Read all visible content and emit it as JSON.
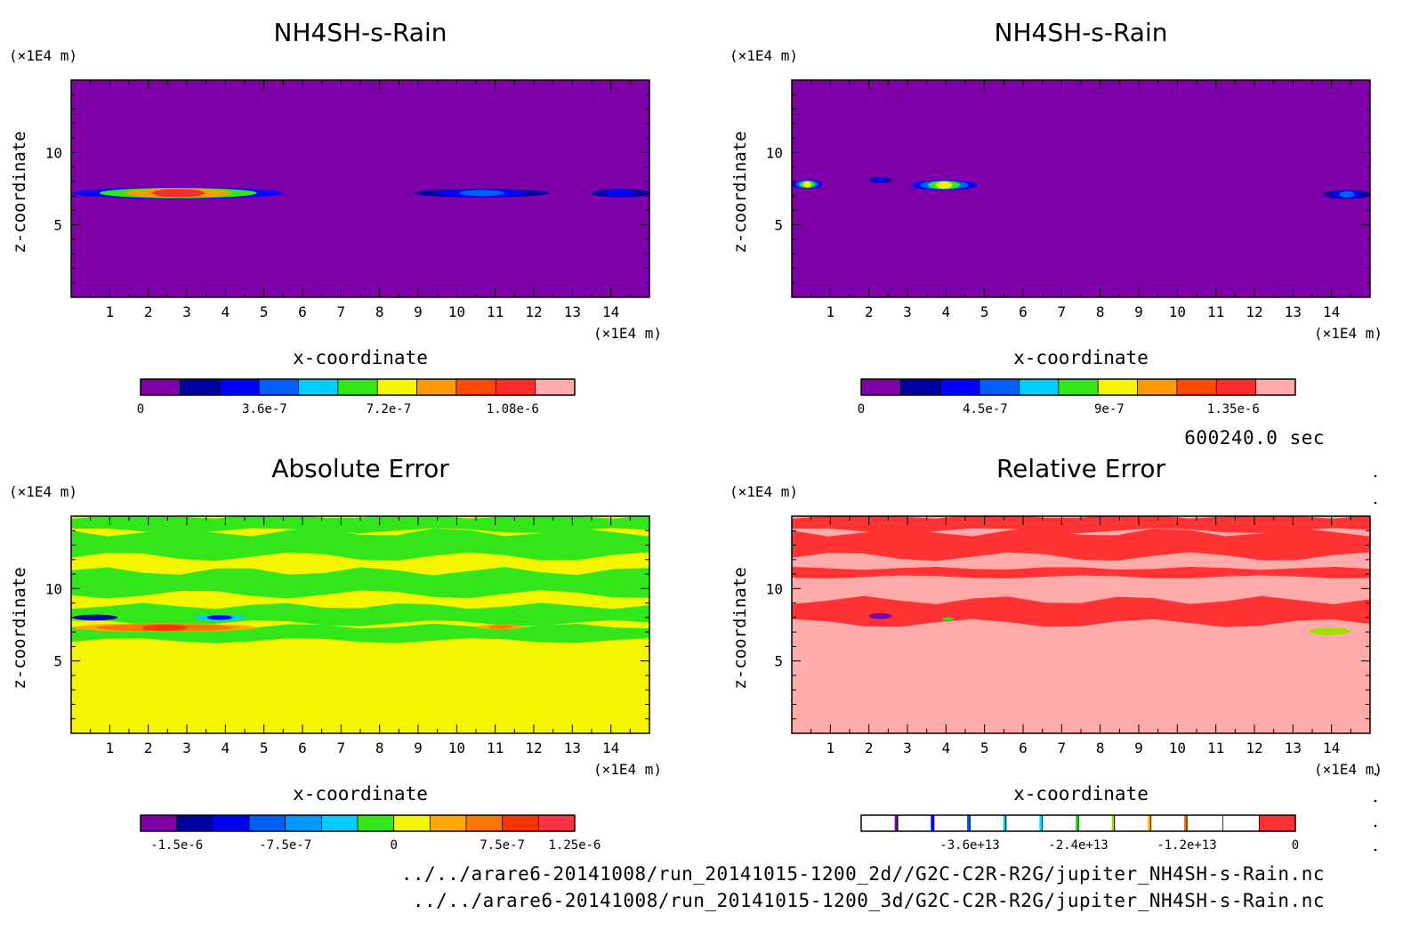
{
  "time_label": "600240.0 sec",
  "footer": {
    "path_2d": "../../arare6-20141008/run_20141015-1200_2d//G2C-C2R-R2G/jupiter_NH4SH-s-Rain.nc",
    "path_3d": "../../arare6-20141008/run_20141015-1200_3d/G2C-C2R-R2G/jupiter_NH4SH-s-Rain.nc"
  },
  "colors": {
    "levels10": [
      "#7f00a8",
      "#0000a0",
      "#0000ff",
      "#0060ff",
      "#00ccff",
      "#33e61a",
      "#f5f500",
      "#ff9900",
      "#ff4a00",
      "#ff2a2a",
      "#ffabab"
    ],
    "abs_err": [
      "#7f00a8",
      "#0000a0",
      "#0000ff",
      "#0060ff",
      "#0099ff",
      "#00ccff",
      "#33e61a",
      "#f5f500",
      "#ffaa00",
      "#ff7700",
      "#ff3300",
      "#ff3344"
    ],
    "rel_marks": [
      "#7f00a8",
      "#0000ff",
      "#0060ff",
      "#00ccff",
      "#00e5ff",
      "#33e61a",
      "#a0e000",
      "#ffaa00",
      "#ff7700"
    ],
    "rel_top": "#ff3333"
  },
  "chart_data": [
    {
      "type": "heatmap",
      "title": "NH4SH-s-Rain",
      "xlabel": "x-coordinate",
      "ylabel": "z-coordinate",
      "x_unit": "(×1E4 m)",
      "y_unit": "(×1E4 m)",
      "xlim": [
        0,
        15
      ],
      "ylim": [
        0,
        15
      ],
      "x_ticks": [
        1,
        2,
        3,
        4,
        5,
        6,
        7,
        8,
        9,
        10,
        11,
        12,
        13,
        14
      ],
      "y_ticks": [
        5,
        10
      ],
      "colorbar": {
        "min": 0,
        "max": 1.26e-06,
        "n": 11,
        "ticks": [
          "0",
          "3.6e-7",
          "7.2e-7",
          "1.08e-6"
        ],
        "tick_values": [
          0,
          3.6e-07,
          7.2e-07,
          1.08e-06
        ]
      },
      "background_level": 0,
      "features": [
        {
          "x": [
            0.05,
            5.5
          ],
          "z": [
            6.8,
            7.6
          ],
          "peak_level": 9
        },
        {
          "x": [
            8.9,
            12.4
          ],
          "z": [
            6.9,
            7.5
          ],
          "peak_level": 3
        },
        {
          "x": [
            13.5,
            15
          ],
          "z": [
            6.9,
            7.5
          ],
          "peak_level": 2
        }
      ]
    },
    {
      "type": "heatmap",
      "title": "NH4SH-s-Rain",
      "xlabel": "x-coordinate",
      "ylabel": "z-coordinate",
      "x_unit": "(×1E4 m)",
      "y_unit": "(×1E4 m)",
      "xlim": [
        0,
        15
      ],
      "ylim": [
        0,
        15
      ],
      "x_ticks": [
        1,
        2,
        3,
        4,
        5,
        6,
        7,
        8,
        9,
        10,
        11,
        12,
        13,
        14
      ],
      "y_ticks": [
        5,
        10
      ],
      "colorbar": {
        "min": 0,
        "max": 1.575e-06,
        "n": 11,
        "ticks": [
          "0",
          "4.5e-7",
          "9e-7",
          "1.35e-6"
        ],
        "tick_values": [
          0,
          4.5e-07,
          9e-07,
          1.35e-06
        ]
      },
      "background_level": 0,
      "features": [
        {
          "x": [
            0,
            0.8
          ],
          "z": [
            7.5,
            8.1
          ],
          "peak_level": 6
        },
        {
          "x": [
            2.0,
            2.6
          ],
          "z": [
            7.9,
            8.3
          ],
          "peak_level": 2
        },
        {
          "x": [
            3.1,
            4.8
          ],
          "z": [
            7.4,
            8.1
          ],
          "peak_level": 6
        },
        {
          "x": [
            13.8,
            15
          ],
          "z": [
            6.8,
            7.4
          ],
          "peak_level": 3
        }
      ]
    },
    {
      "type": "heatmap",
      "title": "Absolute Error",
      "xlabel": "x-coordinate",
      "ylabel": "z-coordinate",
      "x_unit": "(×1E4 m)",
      "y_unit": "(×1E4 m)",
      "xlim": [
        0,
        15
      ],
      "ylim": [
        0,
        15
      ],
      "x_ticks": [
        1,
        2,
        3,
        4,
        5,
        6,
        7,
        8,
        9,
        10,
        11,
        12,
        13,
        14
      ],
      "y_ticks": [
        5,
        10
      ],
      "colorbar": {
        "min": -1.75e-06,
        "max": 1.25e-06,
        "n": 12,
        "ticks": [
          "-1.5e-6",
          "-7.5e-7",
          "0",
          "7.5e-7",
          "1.25e-6"
        ],
        "tick_values": [
          -1.5e-06,
          -7.5e-07,
          0,
          7.5e-07,
          1.25e-06
        ]
      },
      "background_level": 7,
      "bands": [
        {
          "z": [
            14.0,
            15.0
          ],
          "level": 6
        },
        {
          "z": [
            12.2,
            13.9
          ],
          "level": 6
        },
        {
          "z": [
            9.6,
            11.2
          ],
          "level": 6
        },
        {
          "z": [
            7.6,
            8.8
          ],
          "level": 6
        },
        {
          "z": [
            6.4,
            7.4
          ],
          "level": 6
        }
      ],
      "features": [
        {
          "x": [
            0.05,
            4.8
          ],
          "z": [
            7.0,
            7.6
          ],
          "peak_level": 10
        },
        {
          "x": [
            0.05,
            1.2
          ],
          "z": [
            7.8,
            8.2
          ],
          "peak_level": 1
        },
        {
          "x": [
            3.2,
            4.5
          ],
          "z": [
            7.8,
            8.2
          ],
          "peak_level": 2
        },
        {
          "x": [
            10.5,
            11.8
          ],
          "z": [
            7.2,
            7.5
          ],
          "peak_level": 9
        }
      ]
    },
    {
      "type": "heatmap",
      "title": "Relative Error",
      "xlabel": "x-coordinate",
      "ylabel": "z-coordinate",
      "x_unit": "(×1E4 m)",
      "y_unit": "(×1E4 m)",
      "xlim": [
        0,
        15
      ],
      "ylim": [
        0,
        15
      ],
      "x_ticks": [
        1,
        2,
        3,
        4,
        5,
        6,
        7,
        8,
        9,
        10,
        11,
        12,
        13,
        14
      ],
      "y_ticks": [
        5,
        10
      ],
      "colorbar": {
        "min": -48000000000000.0,
        "max": 0,
        "n": 12,
        "ticks": [
          "-3.6e+13",
          "-2.4e+13",
          "-1.2e+13",
          "0"
        ],
        "tick_values": [
          -36000000000000.0,
          -24000000000000.0,
          -12000000000000.0,
          0
        ]
      },
      "background_level": 11,
      "bands": [
        {
          "z": [
            14.0,
            15.0
          ],
          "level": 10
        },
        {
          "z": [
            12.2,
            13.9
          ],
          "level": 10
        },
        {
          "z": [
            10.8,
            11.4
          ],
          "level": 10
        },
        {
          "z": [
            7.6,
            9.2
          ],
          "level": 10
        }
      ],
      "features": [
        {
          "x": [
            2.0,
            2.6
          ],
          "z": [
            7.9,
            8.3
          ],
          "peak_level": 1
        },
        {
          "x": [
            3.9,
            4.2
          ],
          "z": [
            7.8,
            8.0
          ],
          "peak_level": 6
        },
        {
          "x": [
            13.4,
            14.5
          ],
          "z": [
            6.8,
            7.3
          ],
          "peak_level": 7
        }
      ]
    }
  ]
}
